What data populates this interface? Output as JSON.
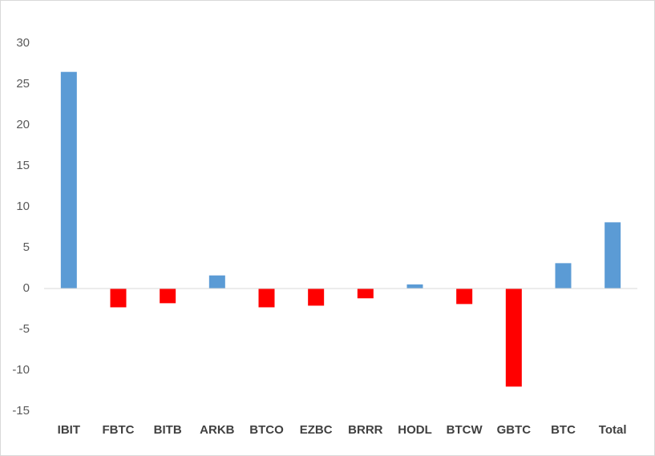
{
  "chart_data": {
    "type": "bar",
    "categories": [
      "IBIT",
      "FBTC",
      "BITB",
      "ARKB",
      "BTCO",
      "EZBC",
      "BRRR",
      "HODL",
      "BTCW",
      "GBTC",
      "BTC",
      "Total"
    ],
    "values": [
      26.5,
      -2.3,
      -1.8,
      1.6,
      -2.3,
      -2.1,
      -1.2,
      0.5,
      -1.9,
      -12.0,
      3.1,
      8.1
    ],
    "positive_color": "#5b9bd5",
    "negative_color": "#ff0000",
    "ylim": [
      -15,
      30
    ],
    "yticks": [
      -15,
      -10,
      -5,
      0,
      5,
      10,
      15,
      20,
      25,
      30
    ],
    "grid": false
  }
}
